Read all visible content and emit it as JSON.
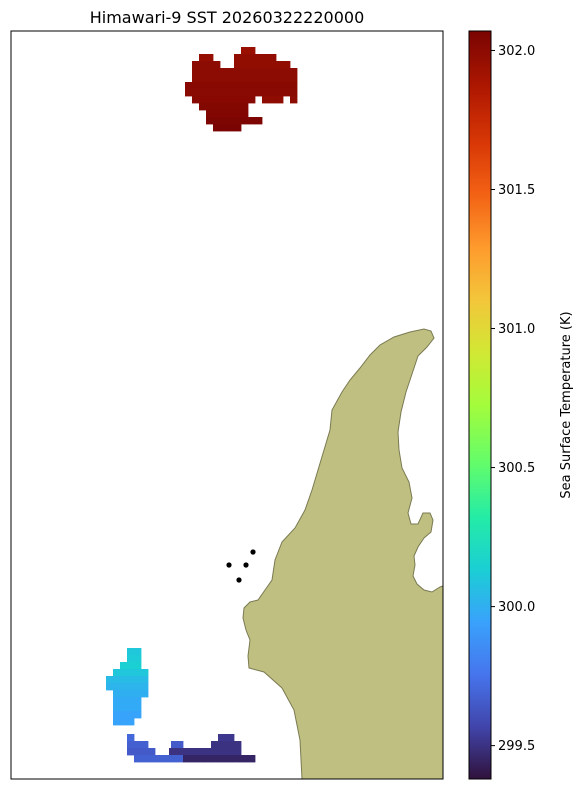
{
  "title": "Himawari-9 SST 20260322220000",
  "colorbar": {
    "label": "Sea Surface Temperature (K)",
    "min": 299.38,
    "max": 302.07,
    "ticks": [
      "299.5",
      "300.0",
      "300.5",
      "301.0",
      "301.5",
      "302.0"
    ],
    "colormap": "turbo"
  },
  "colors": {
    "land": "#bfbf82",
    "coastline": "#7a7a52",
    "markers": "#000000"
  },
  "map_layers": {
    "land_polygon": "coastline",
    "station_markers": 4
  },
  "chart_data": {
    "type": "heatmap",
    "title": "Himawari-9 SST 20260322220000",
    "value_label": "Sea Surface Temperature (K)",
    "vmin": 299.38,
    "vmax": 302.07,
    "ticks": [
      299.5,
      300.0,
      300.5,
      301.0,
      301.5,
      302.0
    ],
    "regions": [
      {
        "region": "north patch",
        "values_K": [
          301.95,
          301.98,
          302.0,
          302.03,
          302.06
        ]
      },
      {
        "region": "southwest patch",
        "values_K": [
          299.95,
          300.0,
          300.05,
          300.1,
          300.15
        ]
      },
      {
        "region": "south patch",
        "values_K": [
          299.45,
          299.5,
          299.55,
          299.65
        ]
      }
    ]
  }
}
